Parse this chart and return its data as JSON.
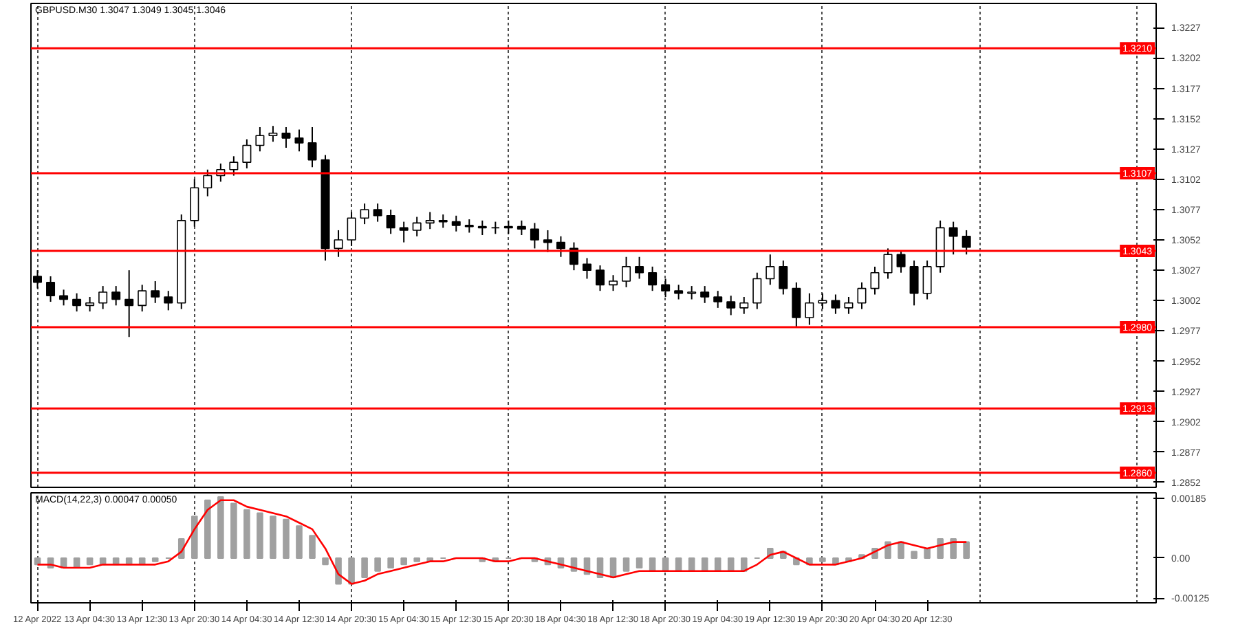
{
  "chart_data": [
    {
      "type": "candlestick",
      "title": "GBPUSD.M30 1.3047 1.3049 1.3045 1.3046",
      "categories": [
        null,
        null,
        null,
        null,
        null,
        null,
        null,
        null,
        null,
        null,
        null,
        null,
        null,
        null,
        null,
        null,
        null,
        null,
        null,
        null,
        null,
        null,
        null,
        null,
        null,
        null,
        null,
        null,
        null,
        null,
        null,
        null,
        null,
        null,
        null,
        null,
        null,
        null,
        null,
        null,
        null,
        null,
        null,
        null,
        null,
        null,
        null,
        null,
        null,
        null,
        null,
        null,
        null,
        null,
        null,
        null,
        null,
        null,
        null,
        null,
        null,
        null,
        null,
        null,
        null,
        null,
        null,
        null,
        null,
        null,
        null,
        null,
        null,
        null,
        null,
        null,
        null,
        null,
        null,
        null,
        null,
        null,
        null,
        null,
        null,
        null
      ],
      "ohlc": [
        [
          1.3022,
          1.3027,
          1.3012,
          1.3017
        ],
        [
          1.3017,
          1.3022,
          1.3001,
          1.3006
        ],
        [
          1.3006,
          1.3011,
          1.2998,
          1.3003
        ],
        [
          1.3003,
          1.3008,
          1.2993,
          1.2998
        ],
        [
          1.2998,
          1.3005,
          1.2993,
          1.3
        ],
        [
          1.3,
          1.3014,
          1.2995,
          1.3009
        ],
        [
          1.3009,
          1.3014,
          1.2998,
          1.3003
        ],
        [
          1.3003,
          1.3027,
          1.2972,
          1.2998
        ],
        [
          1.2998,
          1.3015,
          1.2993,
          1.301
        ],
        [
          1.301,
          1.3018,
          1.3,
          1.3005
        ],
        [
          1.3005,
          1.301,
          1.2994,
          1.3
        ],
        [
          1.3,
          1.3073,
          1.2995,
          1.3068
        ],
        [
          1.3068,
          1.3102,
          1.3063,
          1.3095
        ],
        [
          1.3095,
          1.311,
          1.3088,
          1.3105
        ],
        [
          1.3105,
          1.3115,
          1.31,
          1.311
        ],
        [
          1.311,
          1.3121,
          1.3105,
          1.3116
        ],
        [
          1.3116,
          1.3135,
          1.3111,
          1.313
        ],
        [
          1.313,
          1.3145,
          1.3125,
          1.3138
        ],
        [
          1.3138,
          1.3146,
          1.3133,
          1.314
        ],
        [
          1.314,
          1.3145,
          1.3128,
          1.3136
        ],
        [
          1.3136,
          1.3143,
          1.3125,
          1.3132
        ],
        [
          1.3132,
          1.3145,
          1.3112,
          1.3118
        ],
        [
          1.3118,
          1.3122,
          1.3035,
          1.3045
        ],
        [
          1.3045,
          1.306,
          1.3038,
          1.3052
        ],
        [
          1.3052,
          1.3075,
          1.3047,
          1.307
        ],
        [
          1.307,
          1.3082,
          1.3065,
          1.3077
        ],
        [
          1.3077,
          1.3082,
          1.3067,
          1.3072
        ],
        [
          1.3072,
          1.3077,
          1.3057,
          1.3062
        ],
        [
          1.3062,
          1.3067,
          1.305,
          1.306
        ],
        [
          1.306,
          1.3071,
          1.3055,
          1.3066
        ],
        [
          1.3066,
          1.3075,
          1.3061,
          1.3068
        ],
        [
          1.3068,
          1.3073,
          1.3062,
          1.3067
        ],
        [
          1.3067,
          1.3072,
          1.3059,
          1.3064
        ],
        [
          1.3064,
          1.3069,
          1.3058,
          1.3063
        ],
        [
          1.3063,
          1.3068,
          1.3056,
          1.3062
        ],
        [
          1.3062,
          1.3067,
          1.3057,
          1.3062
        ],
        [
          1.3062,
          1.3068,
          1.3057,
          1.3063
        ],
        [
          1.3063,
          1.3068,
          1.3056,
          1.3061
        ],
        [
          1.3061,
          1.3066,
          1.3045,
          1.3052
        ],
        [
          1.3052,
          1.306,
          1.3042,
          1.305
        ],
        [
          1.305,
          1.3055,
          1.3038,
          1.3045
        ],
        [
          1.3045,
          1.305,
          1.3027,
          1.3032
        ],
        [
          1.3032,
          1.3037,
          1.302,
          1.3027
        ],
        [
          1.3027,
          1.3031,
          1.301,
          1.3015
        ],
        [
          1.3015,
          1.3023,
          1.301,
          1.3018
        ],
        [
          1.3018,
          1.3038,
          1.3013,
          1.303
        ],
        [
          1.303,
          1.3038,
          1.302,
          1.3025
        ],
        [
          1.3025,
          1.303,
          1.301,
          1.3015
        ],
        [
          1.3015,
          1.302,
          1.3005,
          1.301
        ],
        [
          1.301,
          1.3015,
          1.3003,
          1.3008
        ],
        [
          1.3008,
          1.3014,
          1.3003,
          1.3009
        ],
        [
          1.3009,
          1.3014,
          1.3,
          1.3005
        ],
        [
          1.3005,
          1.301,
          1.2996,
          1.3001
        ],
        [
          1.3001,
          1.3006,
          1.299,
          1.2996
        ],
        [
          1.2996,
          1.3005,
          1.2991,
          1.3
        ],
        [
          1.3,
          1.3025,
          1.2995,
          1.302
        ],
        [
          1.302,
          1.304,
          1.3015,
          1.303
        ],
        [
          1.303,
          1.3035,
          1.3007,
          1.3012
        ],
        [
          1.3012,
          1.3017,
          1.298,
          1.2988
        ],
        [
          1.2988,
          1.3008,
          1.2982,
          1.3
        ],
        [
          1.3,
          1.3008,
          1.2995,
          1.3002
        ],
        [
          1.3002,
          1.3007,
          1.2991,
          1.2996
        ],
        [
          1.2996,
          1.3005,
          1.2991,
          1.3
        ],
        [
          1.3,
          1.3017,
          1.2995,
          1.3012
        ],
        [
          1.3012,
          1.303,
          1.3007,
          1.3025
        ],
        [
          1.3025,
          1.3045,
          1.302,
          1.304
        ],
        [
          1.304,
          1.3043,
          1.3025,
          1.303
        ],
        [
          1.303,
          1.3035,
          1.2998,
          1.3008
        ],
        [
          1.3008,
          1.3035,
          1.3003,
          1.303
        ],
        [
          1.303,
          1.3068,
          1.3025,
          1.3062
        ],
        [
          1.3062,
          1.3067,
          1.304,
          1.3055
        ],
        [
          1.3055,
          1.306,
          1.304,
          1.3046
        ],
        null,
        null,
        null,
        null,
        null,
        null,
        null,
        null,
        null,
        null,
        null,
        null,
        null,
        null
      ],
      "ylim": [
        1.2848,
        1.3247
      ],
      "yticks": [
        1.3227,
        1.3202,
        1.3177,
        1.3152,
        1.3127,
        1.3102,
        1.3077,
        1.3052,
        1.3027,
        1.3002,
        1.2977,
        1.2952,
        1.2927,
        1.2902,
        1.2877,
        1.2852
      ],
      "ref_lines": [
        {
          "axis": "y",
          "value": 1.321,
          "label": "1.3210",
          "color": "#ff0000"
        },
        {
          "axis": "y",
          "value": 1.3107,
          "label": "1.3107",
          "color": "#ff0000"
        },
        {
          "axis": "y",
          "value": 1.3043,
          "label": "1.3043",
          "color": "#ff0000"
        },
        {
          "axis": "y",
          "value": 1.298,
          "label": "1.2980",
          "color": "#ff0000"
        },
        {
          "axis": "y",
          "value": 1.2913,
          "label": "1.2913",
          "color": "#ff0000"
        },
        {
          "axis": "y",
          "value": 1.286,
          "label": "1.2860",
          "color": "#ff0000"
        }
      ],
      "grid": "x"
    },
    {
      "type": "bar",
      "title": "MACD(14,22,3) 0.00047 0.00050",
      "categories": [
        "12 Apr 2022",
        null,
        null,
        null,
        "13 Apr 04:30",
        null,
        null,
        null,
        "13 Apr 12:30",
        null,
        null,
        null,
        "13 Apr 20:30",
        null,
        null,
        null,
        "14 Apr 04:30",
        null,
        null,
        null,
        "14 Apr 12:30",
        null,
        null,
        null,
        "14 Apr 20:30",
        null,
        null,
        null,
        "15 Apr 04:30",
        null,
        null,
        null,
        "15 Apr 12:30",
        null,
        null,
        null,
        "15 Apr 20:30",
        null,
        null,
        null,
        "18 Apr 04:30",
        null,
        null,
        null,
        "18 Apr 12:30",
        null,
        null,
        null,
        "18 Apr 20:30",
        null,
        null,
        null,
        "19 Apr 04:30",
        null,
        null,
        null,
        "19 Apr 12:30",
        null,
        null,
        null,
        "19 Apr 20:30",
        null,
        null,
        null,
        "20 Apr 04:30",
        null,
        null,
        null,
        "20 Apr 12:30",
        null,
        null,
        null,
        null,
        null,
        null,
        null,
        null,
        null,
        null,
        null,
        null,
        null,
        null,
        null,
        null,
        null
      ],
      "series": [
        {
          "type": "bar",
          "color": "#a0a0a0",
          "values": [
            -0.0002,
            -0.0003,
            -0.0003,
            -0.0003,
            -0.0002,
            -0.0002,
            -0.0002,
            -0.0002,
            -0.0002,
            -0.0001,
            0.0,
            0.0006,
            0.0013,
            0.0018,
            0.0019,
            0.0017,
            0.0015,
            0.0014,
            0.0013,
            0.0012,
            0.001,
            0.0007,
            -0.0002,
            -0.0008,
            -0.0008,
            -0.0006,
            -0.0004,
            -0.0003,
            -0.0002,
            -0.0001,
            -0.0001,
            0.0,
            0.0,
            0.0,
            -0.0001,
            -0.0001,
            0.0,
            0.0,
            -0.0001,
            -0.0002,
            -0.0003,
            -0.0004,
            -0.0005,
            -0.0006,
            -0.0006,
            -0.0004,
            -0.0003,
            -0.0004,
            -0.0004,
            -0.0004,
            -0.0004,
            -0.0004,
            -0.0004,
            -0.0004,
            -0.0004,
            0.0,
            0.0003,
            0.0002,
            -0.0002,
            -0.0002,
            -0.0001,
            -0.0002,
            -0.0001,
            0.0001,
            0.0003,
            0.0005,
            0.0005,
            0.0002,
            0.0003,
            0.0006,
            0.0006,
            0.0005,
            null,
            null,
            null,
            null,
            null,
            null,
            null,
            null,
            null,
            null,
            null,
            null,
            null,
            null
          ]
        },
        {
          "type": "line",
          "color": "#ff0000",
          "values": [
            -0.0002,
            -0.0002,
            -0.0003,
            -0.0003,
            -0.0003,
            -0.0002,
            -0.0002,
            -0.0002,
            -0.0002,
            -0.0002,
            -0.0001,
            0.0002,
            0.0009,
            0.0015,
            0.0018,
            0.0018,
            0.0016,
            0.0015,
            0.0014,
            0.0013,
            0.0011,
            0.0009,
            0.0003,
            -0.0005,
            -0.0008,
            -0.0007,
            -0.0005,
            -0.0004,
            -0.0003,
            -0.0002,
            -0.0001,
            -0.0001,
            0.0,
            0.0,
            0.0,
            -0.0001,
            -0.0001,
            0.0,
            0.0,
            -0.0001,
            -0.0002,
            -0.0003,
            -0.0004,
            -0.0005,
            -0.0006,
            -0.0005,
            -0.0004,
            -0.0004,
            -0.0004,
            -0.0004,
            -0.0004,
            -0.0004,
            -0.0004,
            -0.0004,
            -0.0004,
            -0.0002,
            0.0001,
            0.0002,
            0.0,
            -0.0002,
            -0.0002,
            -0.0002,
            -0.0001,
            0.0,
            0.0002,
            0.0004,
            0.0005,
            0.0004,
            0.0003,
            0.0004,
            0.0005,
            0.0005,
            null,
            null,
            null,
            null,
            null,
            null,
            null,
            null,
            null,
            null,
            null,
            null,
            null,
            null
          ]
        }
      ],
      "ylim": [
        -0.00139,
        0.00203
      ],
      "yticks": [
        0.00185,
        {
          "value": 0,
          "label": "0.00"
        },
        -0.00125
      ],
      "grid": "x"
    }
  ]
}
